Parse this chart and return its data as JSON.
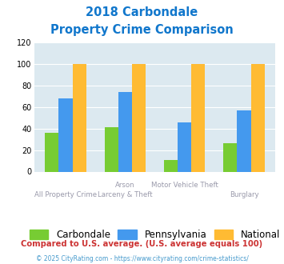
{
  "title_line1": "2018 Carbondale",
  "title_line2": "Property Crime Comparison",
  "cat_labels_top": [
    "",
    "Arson",
    "Motor Vehicle Theft",
    ""
  ],
  "cat_labels_bot": [
    "All Property Crime",
    "Larceny & Theft",
    "",
    "Burglary"
  ],
  "carbondale": [
    36,
    41,
    11,
    26
  ],
  "pennsylvania": [
    68,
    74,
    46,
    57
  ],
  "national": [
    100,
    100,
    100,
    100
  ],
  "color_carbondale": "#77cc33",
  "color_pennsylvania": "#4499ee",
  "color_national": "#ffbb33",
  "ylim": [
    0,
    120
  ],
  "yticks": [
    0,
    20,
    40,
    60,
    80,
    100,
    120
  ],
  "bg_color": "#dce9f0",
  "legend_labels": [
    "Carbondale",
    "Pennsylvania",
    "National"
  ],
  "footnote1": "Compared to U.S. average. (U.S. average equals 100)",
  "footnote2": "© 2025 CityRating.com - https://www.cityrating.com/crime-statistics/",
  "title_color": "#1177cc",
  "xlabel_color": "#9999aa",
  "footnote1_color": "#cc3333",
  "footnote2_color": "#4499cc"
}
